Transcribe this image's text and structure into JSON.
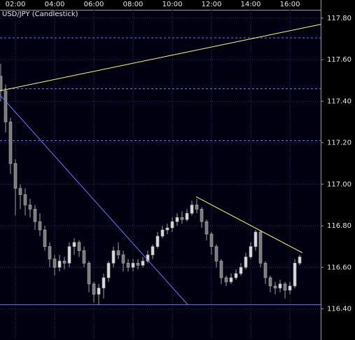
{
  "chart_data": {
    "type": "candlestick",
    "title": "USD/JPY (Candlestick)",
    "up_color": "#d8d8d8",
    "down_color": "#7a7a7a",
    "grid": true,
    "xlim": [
      1.214,
      17.57
    ],
    "ylim": [
      116.25,
      117.84
    ],
    "xticks": [
      {
        "value": 2,
        "label": "02:00"
      },
      {
        "value": 4,
        "label": "04:00"
      },
      {
        "value": 6,
        "label": "06:00"
      },
      {
        "value": 8,
        "label": "08:00"
      },
      {
        "value": 10,
        "label": "10:00"
      },
      {
        "value": 12,
        "label": "12:00"
      },
      {
        "value": 14,
        "label": "14:00"
      },
      {
        "value": 16,
        "label": "16:00"
      }
    ],
    "yticks": [
      {
        "value": 116.4,
        "label": "116.40"
      },
      {
        "value": 116.6,
        "label": "116.60"
      },
      {
        "value": 116.8,
        "label": "116.80"
      },
      {
        "value": 117,
        "label": "117.00"
      },
      {
        "value": 117.2,
        "label": "117.20"
      },
      {
        "value": 117.4,
        "label": "117.40"
      },
      {
        "value": 117.6,
        "label": "117.60"
      },
      {
        "value": 117.8,
        "label": "117.80"
      }
    ],
    "candles": {
      "x": [
        1.25,
        1.5,
        1.75,
        2,
        2.25,
        2.5,
        2.75,
        3,
        3.25,
        3.5,
        3.75,
        4,
        4.25,
        4.5,
        4.75,
        5,
        5.25,
        5.5,
        5.75,
        6,
        6.25,
        6.5,
        6.75,
        7,
        7.25,
        7.5,
        7.75,
        8,
        8.25,
        8.5,
        8.75,
        9,
        9.25,
        9.5,
        9.75,
        10,
        10.25,
        10.5,
        10.75,
        11,
        11.25,
        11.5,
        11.75,
        12,
        12.25,
        12.5,
        12.75,
        13,
        13.25,
        13.5,
        13.75,
        14,
        14.25,
        14.5,
        14.75,
        15,
        15.25,
        15.5,
        15.75,
        16,
        16.25,
        16.5
      ],
      "open": [
        117.52,
        117.45,
        117.3,
        117.1,
        116.98,
        116.95,
        116.9,
        116.88,
        116.82,
        116.78,
        116.7,
        116.64,
        116.6,
        116.63,
        116.62,
        116.7,
        116.72,
        116.68,
        116.62,
        116.52,
        116.47,
        116.5,
        116.55,
        116.62,
        116.68,
        116.66,
        116.62,
        116.6,
        116.62,
        116.61,
        116.63,
        116.66,
        116.7,
        116.75,
        116.78,
        116.79,
        116.82,
        116.84,
        116.83,
        116.86,
        116.9,
        116.88,
        116.82,
        116.76,
        116.7,
        116.63,
        116.55,
        116.53,
        116.55,
        116.57,
        116.6,
        116.65,
        116.7,
        116.77,
        116.62,
        116.55,
        116.51,
        116.5,
        116.52,
        116.49,
        116.51,
        116.62
      ],
      "high": [
        117.58,
        117.48,
        117.32,
        117.12,
        117,
        116.98,
        116.93,
        116.9,
        116.86,
        116.8,
        116.72,
        116.66,
        116.66,
        116.65,
        116.72,
        116.74,
        116.73,
        116.7,
        116.63,
        116.53,
        116.52,
        116.57,
        116.63,
        116.7,
        116.72,
        116.68,
        116.64,
        116.64,
        116.64,
        116.65,
        116.68,
        116.71,
        116.77,
        116.8,
        116.81,
        116.84,
        116.86,
        116.87,
        116.88,
        116.92,
        116.93,
        116.89,
        116.83,
        116.77,
        116.71,
        116.64,
        116.56,
        116.57,
        116.59,
        116.62,
        116.67,
        116.72,
        116.78,
        116.78,
        116.63,
        116.56,
        116.53,
        116.54,
        116.53,
        116.53,
        116.64,
        116.66
      ],
      "low": [
        117.4,
        117.25,
        117.05,
        116.85,
        116.88,
        116.85,
        116.84,
        116.78,
        116.75,
        116.68,
        116.6,
        116.56,
        116.58,
        116.59,
        116.6,
        116.66,
        116.65,
        116.6,
        116.48,
        116.43,
        116.42,
        116.45,
        116.53,
        116.6,
        116.64,
        116.58,
        116.58,
        116.58,
        116.59,
        116.6,
        116.62,
        116.64,
        116.69,
        116.74,
        116.76,
        116.77,
        116.8,
        116.81,
        116.82,
        116.85,
        116.86,
        116.79,
        116.73,
        116.66,
        116.6,
        116.52,
        116.51,
        116.52,
        116.54,
        116.56,
        116.59,
        116.64,
        116.68,
        116.6,
        116.52,
        116.48,
        116.47,
        116.48,
        116.45,
        116.47,
        116.5,
        116.61
      ],
      "close": [
        117.45,
        117.3,
        117.1,
        116.98,
        116.95,
        116.9,
        116.88,
        116.82,
        116.78,
        116.7,
        116.64,
        116.6,
        116.63,
        116.62,
        116.7,
        116.72,
        116.68,
        116.62,
        116.52,
        116.47,
        116.5,
        116.55,
        116.62,
        116.68,
        116.66,
        116.62,
        116.6,
        116.62,
        116.61,
        116.63,
        116.66,
        116.7,
        116.75,
        116.78,
        116.79,
        116.82,
        116.84,
        116.83,
        116.86,
        116.9,
        116.88,
        116.82,
        116.76,
        116.7,
        116.63,
        116.55,
        116.53,
        116.55,
        116.57,
        116.6,
        116.65,
        116.7,
        116.77,
        116.62,
        116.55,
        116.51,
        116.5,
        116.52,
        116.49,
        116.51,
        116.62,
        116.65
      ]
    },
    "trendlines": [
      {
        "color": "#ffff66",
        "x": [
          1.214,
          17.57
        ],
        "y": [
          117.45,
          117.77
        ]
      },
      {
        "color": "#6f74ff",
        "x": [
          1.214,
          10.79
        ],
        "y": [
          117.43,
          116.42
        ]
      },
      {
        "color": "#ffff66",
        "x": [
          11.21,
          16.64
        ],
        "y": [
          116.94,
          116.67
        ]
      }
    ],
    "hlines": [
      {
        "value": 117.705,
        "color": "#6f74ff",
        "dashed": true
      },
      {
        "value": 117.46,
        "color": "#6f74ff",
        "dashed": true
      },
      {
        "value": 117.21,
        "color": "#6f74ff",
        "dashed": true
      },
      {
        "value": 116.42,
        "color": "#6f74ff",
        "dashed": false
      }
    ]
  }
}
